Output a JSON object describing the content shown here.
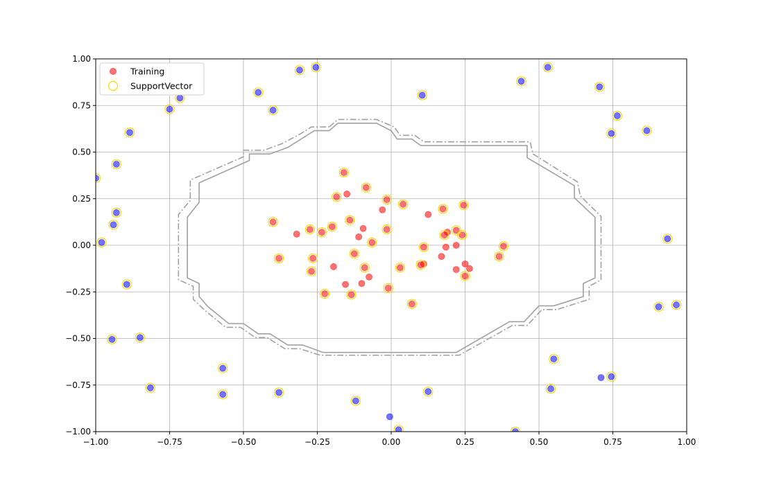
{
  "chart_data": {
    "type": "scatter",
    "title": "",
    "xlabel": "",
    "ylabel": "",
    "xlim": [
      -1.0,
      1.0
    ],
    "ylim": [
      -1.0,
      1.0
    ],
    "x_ticks": [
      -1.0,
      -0.75,
      -0.5,
      -0.25,
      0.0,
      0.25,
      0.5,
      0.75,
      1.0
    ],
    "y_ticks": [
      -1.0,
      -0.75,
      -0.5,
      -0.25,
      0.0,
      0.25,
      0.5,
      0.75,
      1.0
    ],
    "x_tick_labels": [
      "−1.00",
      "−0.75",
      "−0.50",
      "−0.25",
      "0.00",
      "0.25",
      "0.50",
      "0.75",
      "1.00"
    ],
    "y_tick_labels": [
      "−1.00",
      "−0.75",
      "−0.50",
      "−0.25",
      "0.00",
      "0.25",
      "0.50",
      "0.75",
      "1.00"
    ],
    "grid": true,
    "legend": {
      "position": "top-left",
      "entries": [
        {
          "label": "Training",
          "marker": "filled-circle",
          "color": "#ff0000"
        },
        {
          "label": "SupportVector",
          "marker": "open-circle",
          "color": "#ffd700"
        }
      ]
    },
    "colors": {
      "inner_class": "#ff0000",
      "outer_class": "#0000ff",
      "support_vector_edge": "#ffd700",
      "boundary": "#a0a0a0",
      "grid": "#b0b0b0"
    },
    "series": [
      {
        "name": "Training",
        "class": "inner",
        "points": [
          [
            -0.16,
            0.39
          ],
          [
            -0.085,
            0.31
          ],
          [
            -0.15,
            0.275
          ],
          [
            -0.185,
            0.26
          ],
          [
            -0.015,
            0.245
          ],
          [
            0.04,
            0.22
          ],
          [
            0.245,
            0.215
          ],
          [
            0.175,
            0.195
          ],
          [
            -0.03,
            0.19
          ],
          [
            0.125,
            0.165
          ],
          [
            -0.14,
            0.135
          ],
          [
            -0.4,
            0.125
          ],
          [
            -0.2,
            0.1
          ],
          [
            -0.275,
            0.085
          ],
          [
            -0.095,
            0.09
          ],
          [
            -0.015,
            0.085
          ],
          [
            0.22,
            0.08
          ],
          [
            -0.235,
            0.07
          ],
          [
            0.19,
            0.07
          ],
          [
            -0.32,
            0.06
          ],
          [
            0.18,
            0.055
          ],
          [
            0.24,
            0.055
          ],
          [
            -0.11,
            0.045
          ],
          [
            -0.065,
            0.015
          ],
          [
            0.22,
            0.0
          ],
          [
            0.11,
            -0.01
          ],
          [
            0.185,
            -0.01
          ],
          [
            0.38,
            -0.005
          ],
          [
            -0.125,
            -0.045
          ],
          [
            0.365,
            -0.06
          ],
          [
            0.17,
            -0.06
          ],
          [
            -0.265,
            -0.07
          ],
          [
            -0.38,
            -0.07
          ],
          [
            0.25,
            -0.1
          ],
          [
            0.11,
            -0.1
          ],
          [
            0.1,
            -0.105
          ],
          [
            -0.195,
            -0.115
          ],
          [
            -0.09,
            -0.12
          ],
          [
            0.03,
            -0.12
          ],
          [
            0.265,
            -0.125
          ],
          [
            0.22,
            -0.13
          ],
          [
            -0.27,
            -0.14
          ],
          [
            0.25,
            -0.165
          ],
          [
            -0.075,
            -0.17
          ],
          [
            -0.1,
            -0.205
          ],
          [
            -0.155,
            -0.21
          ],
          [
            -0.01,
            -0.23
          ],
          [
            -0.225,
            -0.26
          ],
          [
            -0.135,
            -0.265
          ],
          [
            0.07,
            -0.315
          ]
        ]
      },
      {
        "name": "",
        "class": "outer",
        "points": [
          [
            -0.255,
            0.955
          ],
          [
            0.53,
            0.955
          ],
          [
            -0.31,
            0.94
          ],
          [
            0.44,
            0.88
          ],
          [
            0.705,
            0.85
          ],
          [
            -0.45,
            0.82
          ],
          [
            0.105,
            0.805
          ],
          [
            -0.715,
            0.79
          ],
          [
            -0.75,
            0.73
          ],
          [
            -0.4,
            0.725
          ],
          [
            0.765,
            0.695
          ],
          [
            0.865,
            0.615
          ],
          [
            -0.885,
            0.605
          ],
          [
            0.745,
            0.6
          ],
          [
            -0.93,
            0.435
          ],
          [
            -1.0,
            0.36
          ],
          [
            -0.93,
            0.175
          ],
          [
            -0.94,
            0.11
          ],
          [
            0.935,
            0.035
          ],
          [
            -0.98,
            0.015
          ],
          [
            -0.895,
            -0.21
          ],
          [
            0.905,
            -0.33
          ],
          [
            0.965,
            -0.32
          ],
          [
            -0.85,
            -0.495
          ],
          [
            -0.945,
            -0.505
          ],
          [
            -0.57,
            -0.66
          ],
          [
            0.55,
            -0.61
          ],
          [
            0.71,
            -0.71
          ],
          [
            0.745,
            -0.705
          ],
          [
            -0.815,
            -0.765
          ],
          [
            0.54,
            -0.77
          ],
          [
            -0.38,
            -0.79
          ],
          [
            -0.57,
            -0.8
          ],
          [
            0.125,
            -0.785
          ],
          [
            -0.12,
            -0.835
          ],
          [
            -0.005,
            -0.92
          ],
          [
            0.025,
            -0.99
          ],
          [
            0.42,
            -1.0
          ]
        ]
      }
    ],
    "support_vectors": [
      [
        -0.255,
        0.955
      ],
      [
        0.53,
        0.955
      ],
      [
        -0.31,
        0.94
      ],
      [
        0.44,
        0.88
      ],
      [
        0.705,
        0.85
      ],
      [
        -0.45,
        0.82
      ],
      [
        0.105,
        0.805
      ],
      [
        -0.715,
        0.79
      ],
      [
        -0.75,
        0.73
      ],
      [
        -0.4,
        0.725
      ],
      [
        0.765,
        0.695
      ],
      [
        0.865,
        0.615
      ],
      [
        -0.885,
        0.605
      ],
      [
        0.745,
        0.6
      ],
      [
        -0.93,
        0.435
      ],
      [
        -1.0,
        0.36
      ],
      [
        -0.93,
        0.175
      ],
      [
        -0.94,
        0.11
      ],
      [
        0.935,
        0.035
      ],
      [
        -0.98,
        0.015
      ],
      [
        -0.895,
        -0.21
      ],
      [
        0.905,
        -0.33
      ],
      [
        0.965,
        -0.32
      ],
      [
        -0.85,
        -0.495
      ],
      [
        -0.945,
        -0.505
      ],
      [
        -0.57,
        -0.66
      ],
      [
        0.55,
        -0.61
      ],
      [
        0.745,
        -0.705
      ],
      [
        -0.815,
        -0.765
      ],
      [
        0.54,
        -0.77
      ],
      [
        -0.38,
        -0.79
      ],
      [
        -0.57,
        -0.8
      ],
      [
        0.125,
        -0.785
      ],
      [
        -0.12,
        -0.835
      ],
      [
        0.025,
        -0.99
      ],
      [
        0.42,
        -1.0
      ],
      [
        -0.16,
        0.39
      ],
      [
        -0.085,
        0.31
      ],
      [
        -0.185,
        0.26
      ],
      [
        -0.015,
        0.245
      ],
      [
        0.04,
        0.22
      ],
      [
        0.245,
        0.215
      ],
      [
        0.175,
        0.195
      ],
      [
        -0.14,
        0.135
      ],
      [
        -0.4,
        0.125
      ],
      [
        -0.2,
        0.1
      ],
      [
        -0.275,
        0.085
      ],
      [
        -0.015,
        0.085
      ],
      [
        0.22,
        0.08
      ],
      [
        -0.235,
        0.07
      ],
      [
        0.18,
        0.055
      ],
      [
        0.24,
        0.055
      ],
      [
        -0.065,
        0.015
      ],
      [
        0.11,
        -0.01
      ],
      [
        0.38,
        -0.005
      ],
      [
        -0.125,
        -0.045
      ],
      [
        0.365,
        -0.06
      ],
      [
        -0.265,
        -0.07
      ],
      [
        -0.38,
        -0.07
      ],
      [
        0.1,
        -0.105
      ],
      [
        -0.09,
        -0.12
      ],
      [
        0.03,
        -0.12
      ],
      [
        -0.27,
        -0.14
      ],
      [
        0.25,
        -0.165
      ],
      [
        -0.01,
        -0.23
      ],
      [
        -0.225,
        -0.26
      ],
      [
        -0.135,
        -0.265
      ],
      [
        0.07,
        -0.315
      ]
    ],
    "contours": [
      {
        "style": "solid",
        "points": [
          [
            -0.21,
            0.615
          ],
          [
            -0.18,
            0.655
          ],
          [
            -0.05,
            0.655
          ],
          [
            0.0,
            0.615
          ],
          [
            0.02,
            0.57
          ],
          [
            0.07,
            0.57
          ],
          [
            0.1,
            0.535
          ],
          [
            0.46,
            0.535
          ],
          [
            0.46,
            0.47
          ],
          [
            0.62,
            0.32
          ],
          [
            0.62,
            0.255
          ],
          [
            0.69,
            0.15
          ],
          [
            0.69,
            0.09
          ],
          [
            0.69,
            -0.02
          ],
          [
            0.69,
            -0.175
          ],
          [
            0.65,
            -0.205
          ],
          [
            0.65,
            -0.275
          ],
          [
            0.55,
            -0.325
          ],
          [
            0.5,
            -0.325
          ],
          [
            0.45,
            -0.41
          ],
          [
            0.4,
            -0.41
          ],
          [
            0.22,
            -0.575
          ],
          [
            -0.23,
            -0.575
          ],
          [
            -0.3,
            -0.535
          ],
          [
            -0.35,
            -0.535
          ],
          [
            -0.41,
            -0.475
          ],
          [
            -0.45,
            -0.475
          ],
          [
            -0.5,
            -0.42
          ],
          [
            -0.55,
            -0.42
          ],
          [
            -0.62,
            -0.33
          ],
          [
            -0.65,
            -0.275
          ],
          [
            -0.65,
            -0.205
          ],
          [
            -0.69,
            -0.175
          ],
          [
            -0.69,
            -0.02
          ],
          [
            -0.69,
            0.09
          ],
          [
            -0.69,
            0.15
          ],
          [
            -0.65,
            0.23
          ],
          [
            -0.65,
            0.335
          ],
          [
            -0.48,
            0.455
          ],
          [
            -0.48,
            0.49
          ],
          [
            -0.41,
            0.49
          ],
          [
            -0.35,
            0.525
          ],
          [
            -0.3,
            0.575
          ],
          [
            -0.26,
            0.615
          ],
          [
            -0.21,
            0.615
          ]
        ]
      },
      {
        "style": "dashdot",
        "points": [
          [
            -0.21,
            0.635
          ],
          [
            -0.18,
            0.675
          ],
          [
            -0.05,
            0.675
          ],
          [
            0.01,
            0.635
          ],
          [
            0.03,
            0.59
          ],
          [
            0.08,
            0.59
          ],
          [
            0.11,
            0.555
          ],
          [
            0.47,
            0.555
          ],
          [
            0.48,
            0.49
          ],
          [
            0.63,
            0.34
          ],
          [
            0.64,
            0.265
          ],
          [
            0.71,
            0.155
          ],
          [
            0.71,
            0.1
          ],
          [
            0.71,
            -0.02
          ],
          [
            0.71,
            -0.185
          ],
          [
            0.67,
            -0.22
          ],
          [
            0.67,
            -0.29
          ],
          [
            0.56,
            -0.345
          ],
          [
            0.51,
            -0.345
          ],
          [
            0.46,
            -0.43
          ],
          [
            0.41,
            -0.43
          ],
          [
            0.23,
            -0.59
          ],
          [
            -0.24,
            -0.59
          ],
          [
            -0.31,
            -0.555
          ],
          [
            -0.36,
            -0.555
          ],
          [
            -0.42,
            -0.495
          ],
          [
            -0.46,
            -0.495
          ],
          [
            -0.51,
            -0.44
          ],
          [
            -0.56,
            -0.44
          ],
          [
            -0.63,
            -0.35
          ],
          [
            -0.67,
            -0.29
          ],
          [
            -0.67,
            -0.22
          ],
          [
            -0.72,
            -0.185
          ],
          [
            -0.72,
            -0.02
          ],
          [
            -0.72,
            0.09
          ],
          [
            -0.72,
            0.165
          ],
          [
            -0.68,
            0.24
          ],
          [
            -0.68,
            0.35
          ],
          [
            -0.5,
            0.475
          ],
          [
            -0.5,
            0.51
          ],
          [
            -0.43,
            0.51
          ],
          [
            -0.37,
            0.545
          ],
          [
            -0.31,
            0.595
          ],
          [
            -0.27,
            0.635
          ],
          [
            -0.21,
            0.635
          ]
        ]
      }
    ]
  }
}
